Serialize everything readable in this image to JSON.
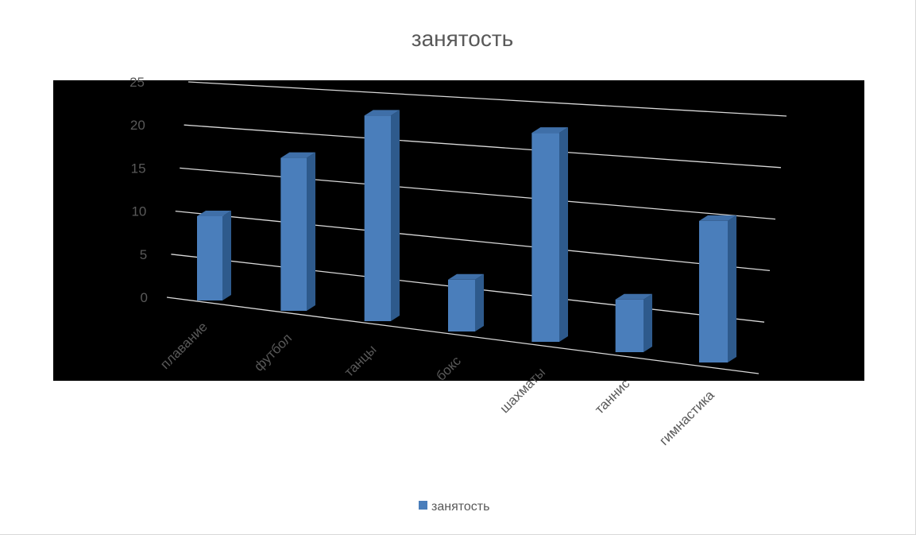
{
  "chart_data": {
    "type": "bar",
    "title": "занятость",
    "xlabel": "",
    "ylabel": "",
    "categories": [
      "плавание",
      "футбол",
      "танцы",
      "бокс",
      "шахматы",
      "таннис",
      "гимнастика"
    ],
    "series": [
      {
        "name": "занятость",
        "values": [
          10,
          18,
          24,
          6,
          24,
          6,
          16
        ],
        "color": "#4a7ebb"
      }
    ],
    "ylim": [
      0,
      25
    ],
    "yticks": [
      "0",
      "5",
      "10",
      "15",
      "20",
      "25"
    ],
    "grid": true,
    "legend": "bottom",
    "plot_background": "#000000"
  }
}
